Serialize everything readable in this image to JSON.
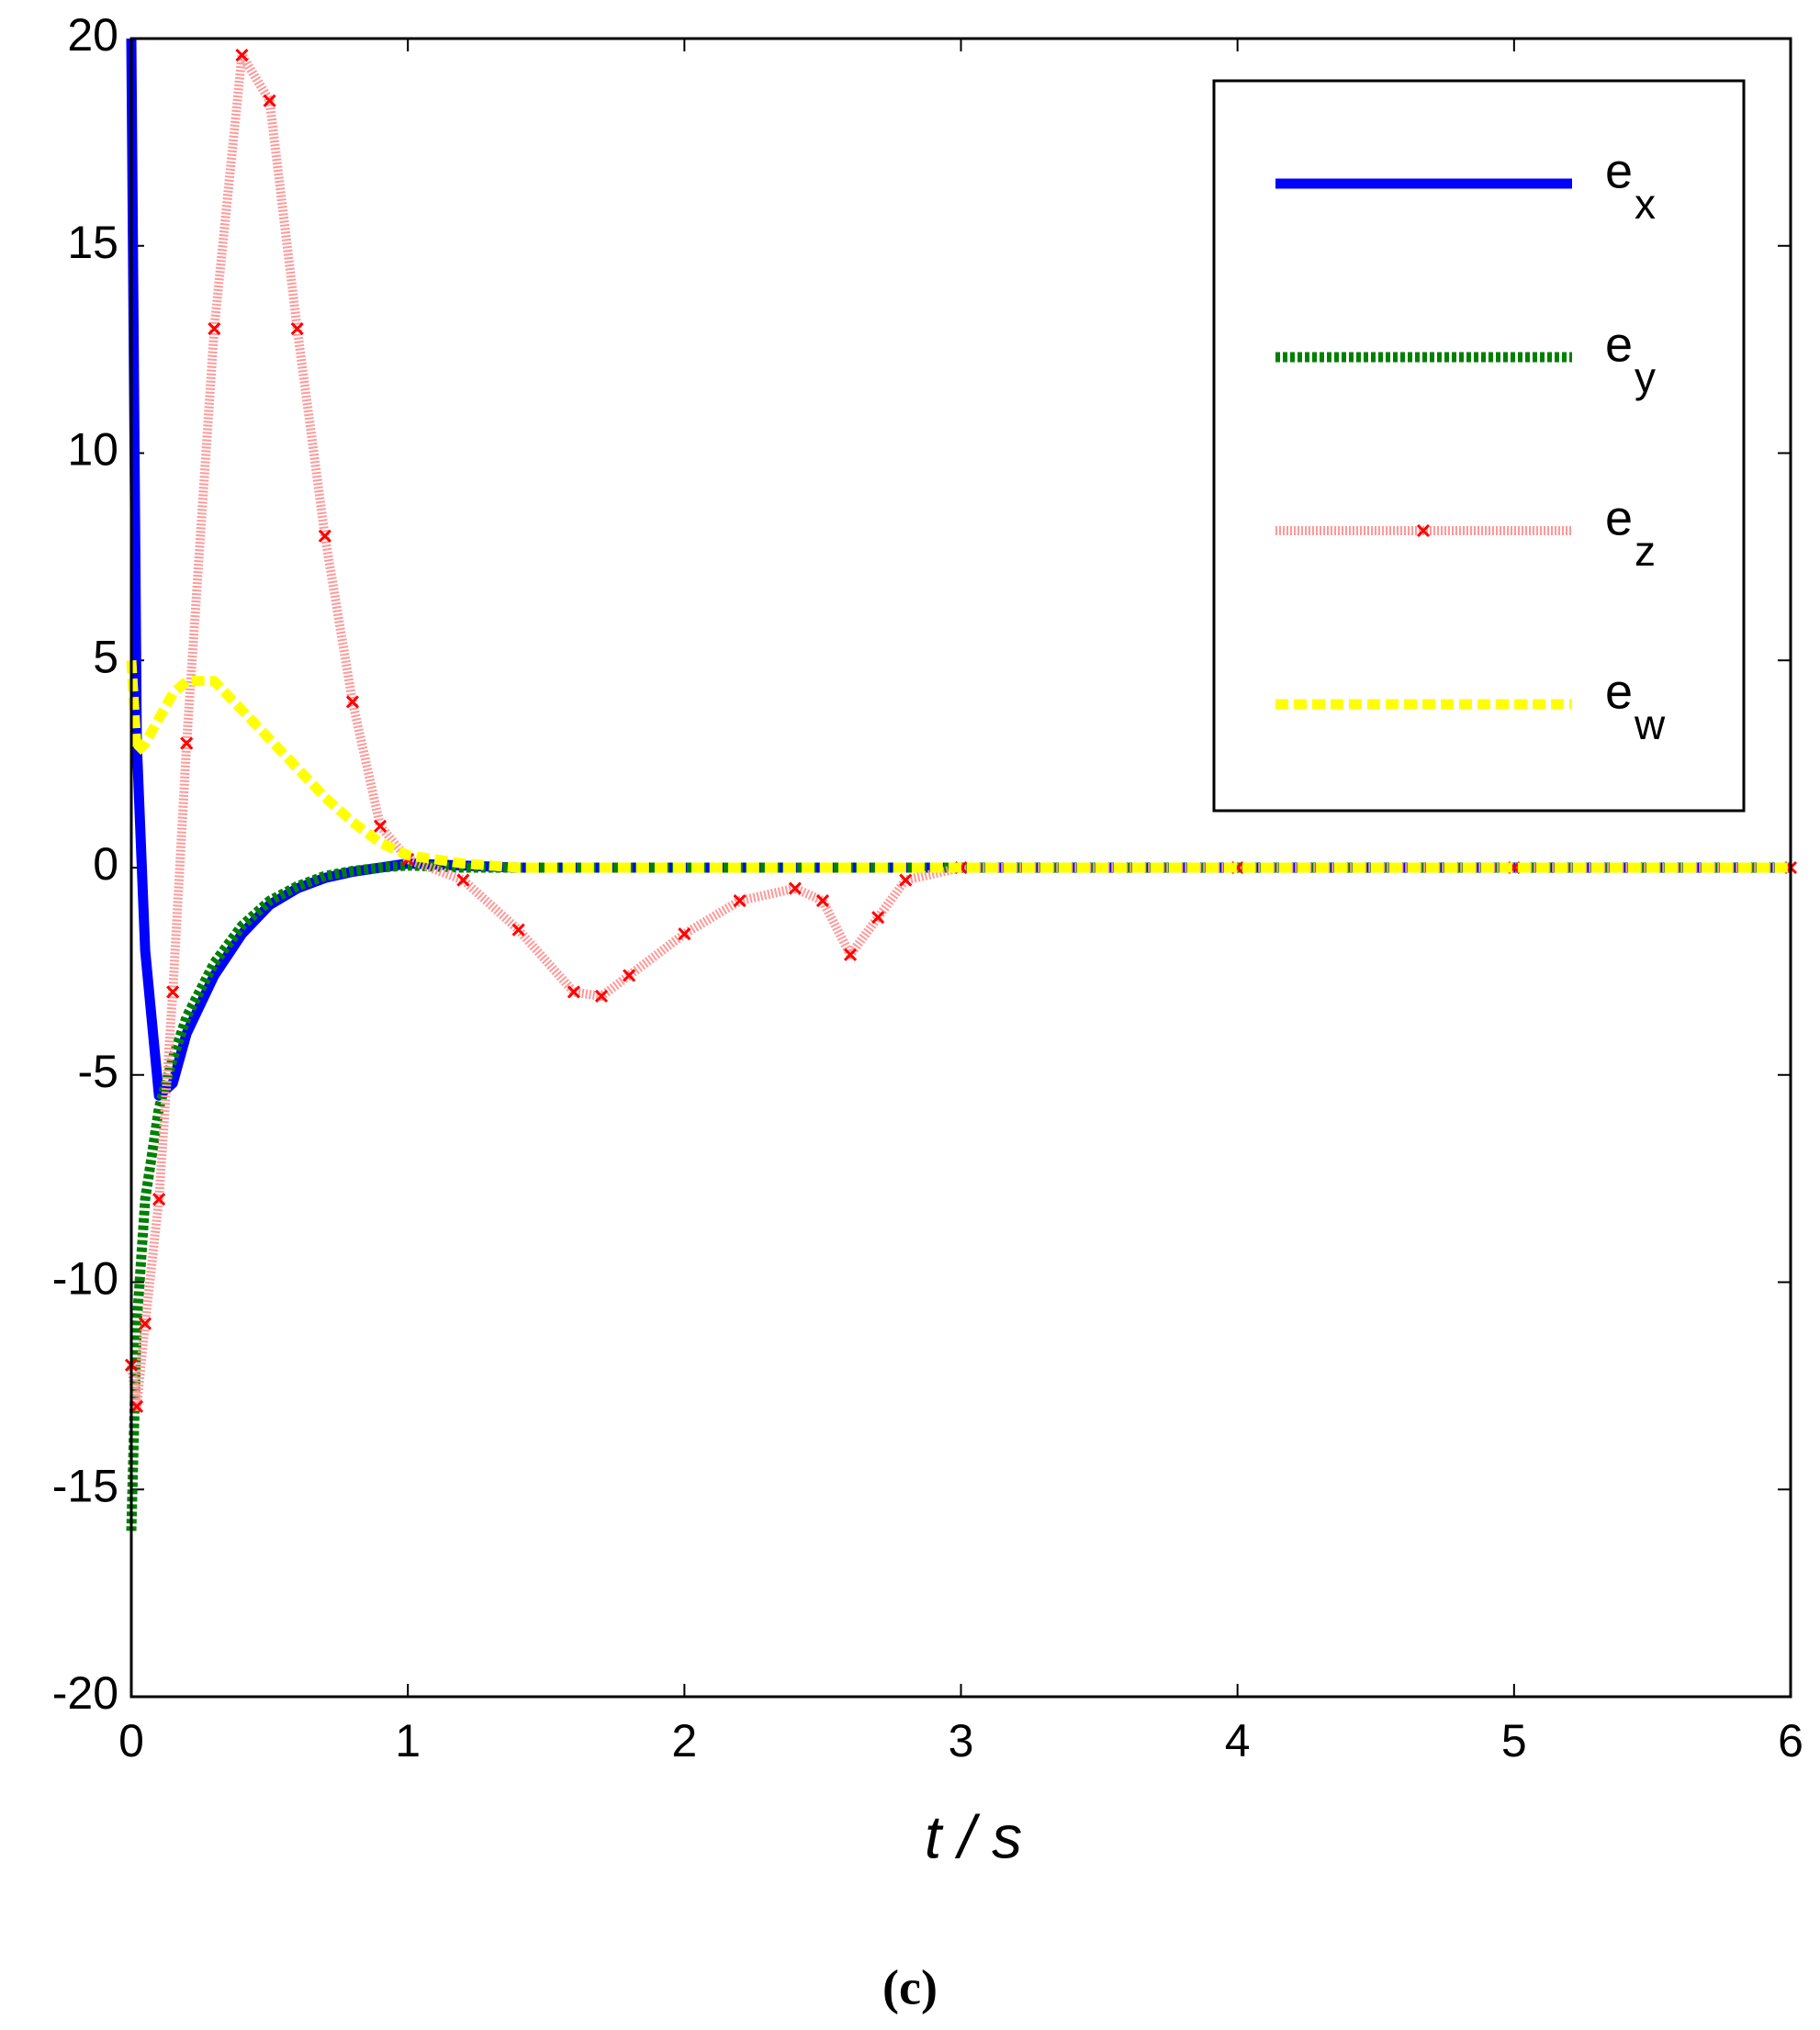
{
  "chart_data": {
    "type": "line",
    "x_label": "t / s",
    "caption": "(c)",
    "x": [
      0,
      0.02,
      0.05,
      0.1,
      0.15,
      0.2,
      0.3,
      0.4,
      0.5,
      0.6,
      0.7,
      0.8,
      0.9,
      1.0,
      1.2,
      1.4,
      1.6,
      1.7,
      1.8,
      2.0,
      2.2,
      2.4,
      2.5,
      2.6,
      2.7,
      2.8,
      3.0,
      4,
      5,
      6
    ],
    "series": [
      {
        "name": "e",
        "subscript": "x",
        "color": "#0000ff",
        "linestyle": "solid",
        "values": [
          20,
          3,
          -2,
          -5.5,
          -5.2,
          -4.0,
          -2.6,
          -1.6,
          -0.9,
          -0.5,
          -0.25,
          -0.1,
          0,
          0.1,
          0.05,
          0,
          0,
          0,
          0,
          0,
          0,
          0,
          0,
          0,
          0,
          0,
          0,
          0,
          0,
          0
        ]
      },
      {
        "name": "e",
        "subscript": "y",
        "color": "#008000",
        "linestyle": "dotted",
        "values": [
          -16,
          -11,
          -8,
          -5.8,
          -4.6,
          -3.6,
          -2.3,
          -1.4,
          -0.8,
          -0.45,
          -0.2,
          -0.08,
          0,
          0.05,
          0,
          0,
          0,
          0,
          0,
          0,
          0,
          0,
          0,
          0,
          0,
          0,
          0,
          0,
          0,
          0
        ]
      },
      {
        "name": "e",
        "subscript": "z",
        "color": "#ff0000",
        "linestyle": "solid",
        "marker": "x",
        "values": [
          -12,
          -13,
          -11,
          -8,
          -3,
          3,
          13,
          19.6,
          18.5,
          13,
          8,
          4,
          1,
          0.2,
          -0.3,
          -1.5,
          -3,
          -3.1,
          -2.6,
          -1.6,
          -0.8,
          -0.5,
          -0.8,
          -2.1,
          -1.2,
          -0.3,
          0,
          0,
          0,
          0
        ]
      },
      {
        "name": "e",
        "subscript": "w",
        "color": "#ffff00",
        "linestyle": "dashed",
        "values": [
          5,
          2.8,
          3,
          3.6,
          4.2,
          4.5,
          4.5,
          3.8,
          3.1,
          2.4,
          1.7,
          1.1,
          0.6,
          0.3,
          0.1,
          0,
          0,
          0,
          0,
          0,
          0,
          0,
          0,
          0,
          0,
          0,
          0,
          0,
          0,
          0
        ]
      }
    ],
    "xlim": [
      0,
      6
    ],
    "xticks": [
      0,
      1,
      2,
      3,
      4,
      5,
      6
    ],
    "ylim": [
      -20,
      20
    ],
    "yticks": [
      -20,
      -15,
      -10,
      -5,
      0,
      5,
      10,
      15,
      20
    ],
    "grid": false,
    "legend": "upper right"
  }
}
